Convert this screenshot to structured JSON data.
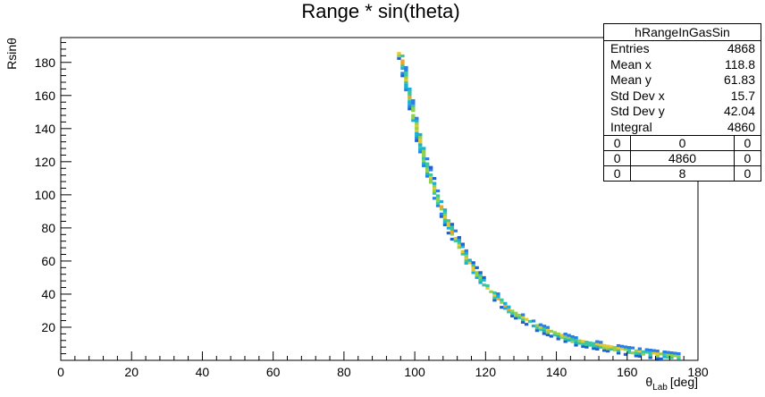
{
  "chart_data": {
    "type": "heatmap",
    "title": "Range * sin(theta)",
    "xlabel_main": "θ",
    "xlabel_sub": "Lab",
    "xlabel_unit": "[deg]",
    "ylabel": "Rsinθ",
    "xlim": [
      0,
      180
    ],
    "ylim": [
      0,
      195
    ],
    "x_ticks": [
      0,
      20,
      40,
      60,
      80,
      100,
      120,
      140,
      160,
      180
    ],
    "y_ticks": [
      20,
      40,
      60,
      80,
      100,
      120,
      140,
      160,
      180
    ],
    "curve": {
      "description_points": [
        {
          "x": 96,
          "y": 185
        },
        {
          "x": 98,
          "y": 165
        },
        {
          "x": 100,
          "y": 145
        },
        {
          "x": 103,
          "y": 120
        },
        {
          "x": 106,
          "y": 100
        },
        {
          "x": 110,
          "y": 80
        },
        {
          "x": 115,
          "y": 60
        },
        {
          "x": 120,
          "y": 45
        },
        {
          "x": 127,
          "y": 30
        },
        {
          "x": 135,
          "y": 20
        },
        {
          "x": 145,
          "y": 12
        },
        {
          "x": 160,
          "y": 6
        },
        {
          "x": 175,
          "y": 2
        }
      ]
    },
    "palette": [
      "#1f5fd0",
      "#2a80e8",
      "#19b0d8",
      "#39c7a0",
      "#8fd14f",
      "#e4c82e",
      "#f4a12a"
    ]
  },
  "stats": {
    "name": "hRangeInGasSin",
    "rows": [
      {
        "label": "Entries",
        "value": "4868"
      },
      {
        "label": "Mean x",
        "value": "118.8"
      },
      {
        "label": "Mean y",
        "value": "61.83"
      },
      {
        "label": "Std Dev x",
        "value": "15.7"
      },
      {
        "label": "Std Dev y",
        "value": "42.04"
      },
      {
        "label": "Integral",
        "value": "4860"
      }
    ],
    "grid": [
      [
        "0",
        "0",
        "0"
      ],
      [
        "0",
        "4860",
        "0"
      ],
      [
        "0",
        "8",
        "0"
      ]
    ]
  }
}
